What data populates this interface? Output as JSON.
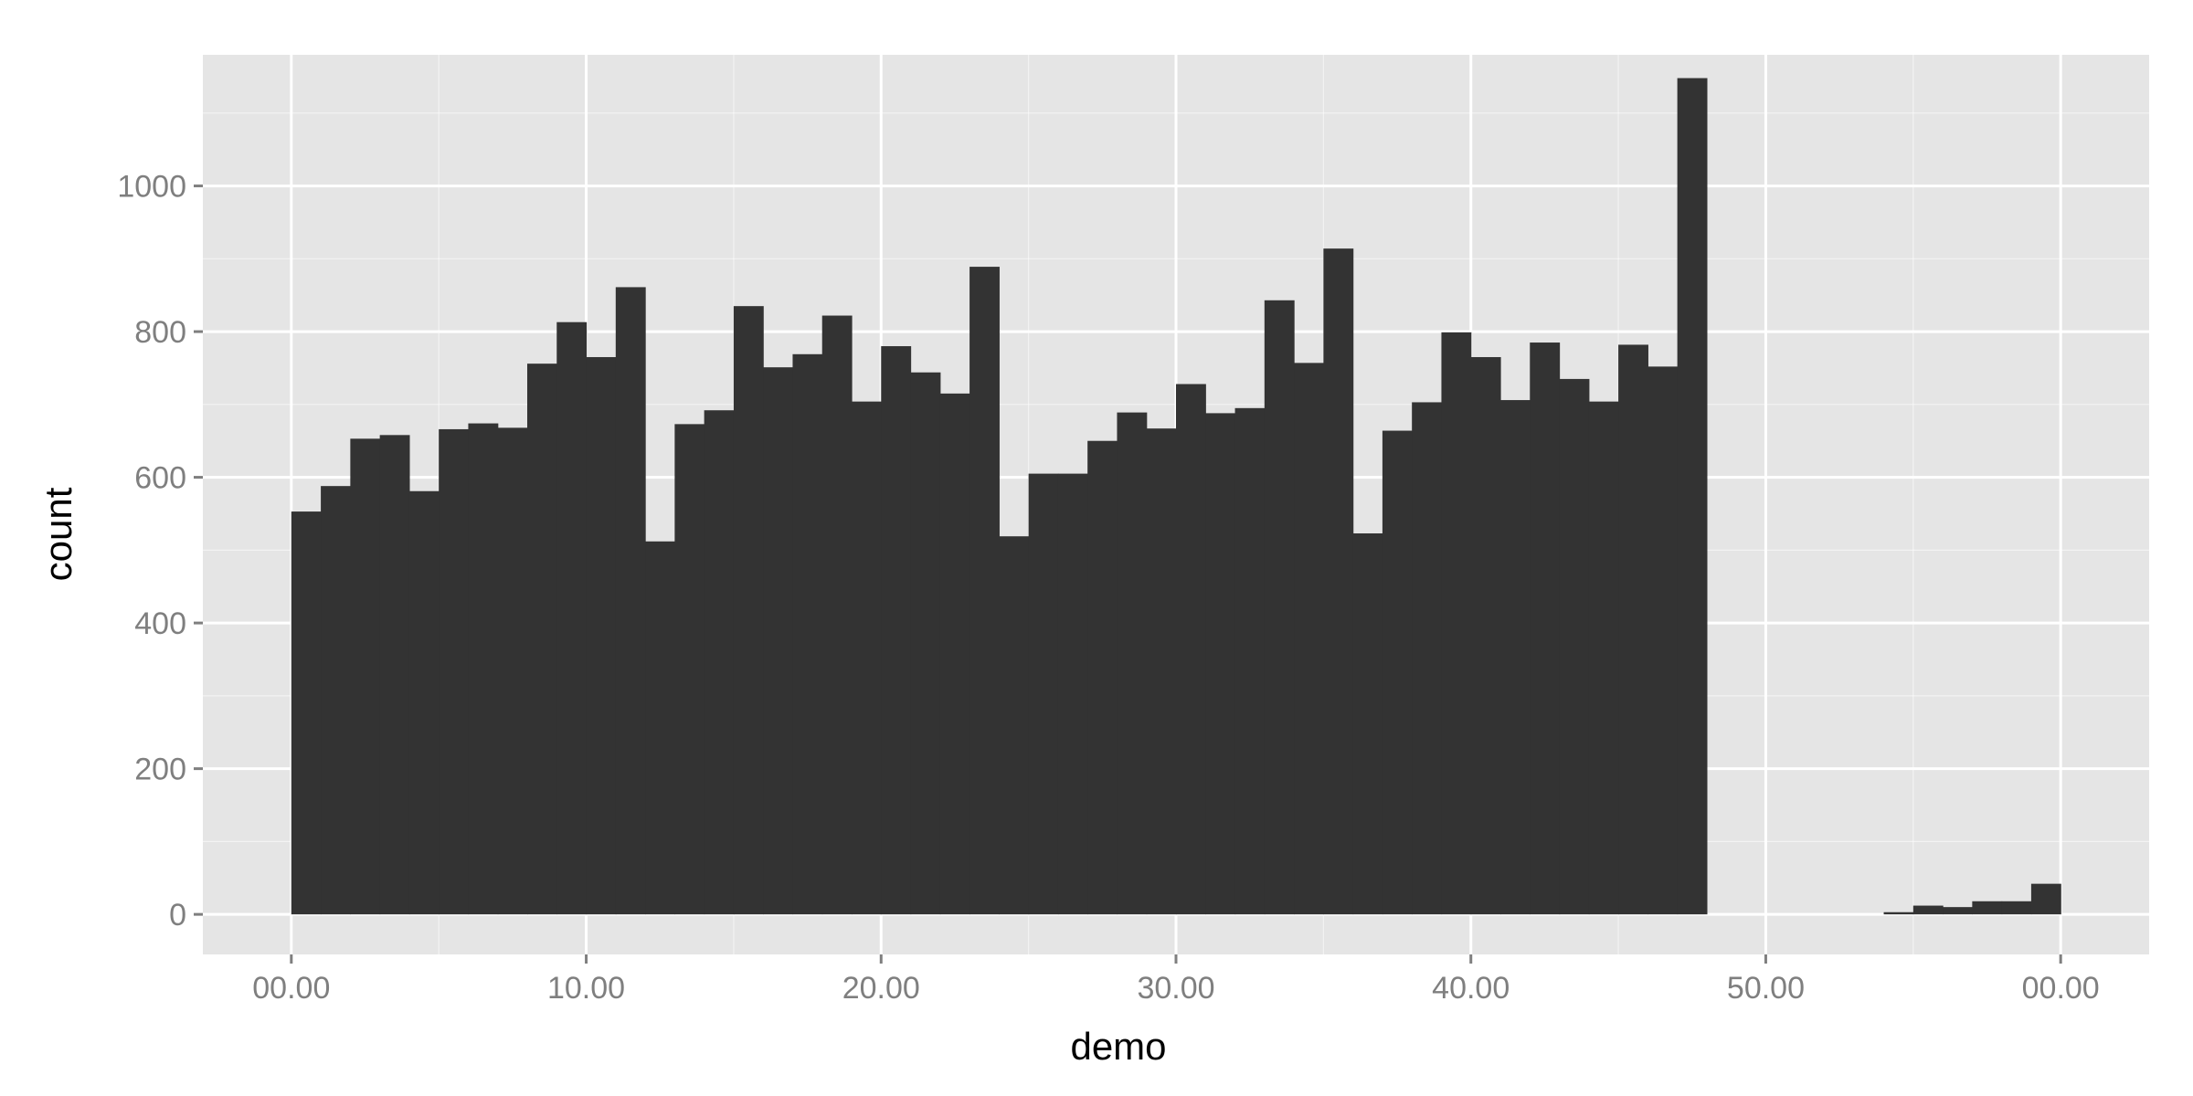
{
  "chart_data": {
    "type": "bar",
    "xlabel": "demo",
    "ylabel": "count",
    "bin_width": 1,
    "x_range": [
      -3,
      63
    ],
    "ylim": [
      -55,
      1180
    ],
    "x_major_ticks": [
      0,
      10,
      20,
      30,
      40,
      50,
      60
    ],
    "x_tick_labels": [
      "00.00",
      "10.00",
      "20.00",
      "30.00",
      "40.00",
      "50.00",
      "00.00"
    ],
    "y_major_ticks": [
      0,
      200,
      400,
      600,
      800,
      1000
    ],
    "y_tick_labels": [
      "0",
      "200",
      "400",
      "600",
      "800",
      "1000"
    ],
    "grid": true,
    "colors": {
      "panel": "#e5e5e5",
      "bar": "#333333",
      "grid": "#ffffff",
      "tick": "#7f7f7f"
    },
    "bins_start": [
      0,
      1,
      2,
      3,
      4,
      5,
      6,
      7,
      8,
      9,
      10,
      11,
      12,
      13,
      14,
      15,
      16,
      17,
      18,
      19,
      20,
      21,
      22,
      23,
      24,
      25,
      26,
      27,
      28,
      29,
      30,
      31,
      32,
      33,
      34,
      35,
      36,
      37,
      38,
      39,
      40,
      41,
      42,
      43,
      44,
      45,
      46,
      47,
      48,
      49,
      50,
      51,
      52,
      53,
      54,
      55,
      56,
      57,
      58,
      59
    ],
    "values": [
      553,
      588,
      653,
      658,
      581,
      666,
      674,
      668,
      756,
      813,
      765,
      861,
      512,
      673,
      692,
      835,
      751,
      769,
      822,
      704,
      780,
      744,
      715,
      889,
      519,
      605,
      605,
      650,
      689,
      667,
      728,
      688,
      695,
      843,
      757,
      914,
      523,
      664,
      703,
      799,
      765,
      706,
      785,
      735,
      704,
      782,
      752,
      1148,
      0,
      0,
      0,
      0,
      0,
      0,
      3,
      12,
      10,
      18,
      18,
      42
    ]
  }
}
